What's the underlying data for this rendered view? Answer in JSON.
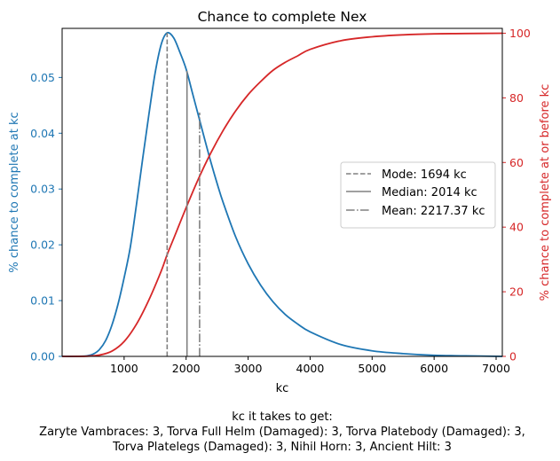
{
  "chart_data": {
    "type": "line",
    "title": "Chance to complete Nex",
    "xlabel": "kc",
    "ylabel_left": "% chance to complete at kc",
    "ylabel_right": "% chance to complete at or before kc",
    "xlim": [
      0,
      7100
    ],
    "ylim_left": [
      0,
      0.0588
    ],
    "ylim_right": [
      0,
      101.5
    ],
    "x_ticks": [
      1000,
      2000,
      3000,
      4000,
      5000,
      6000,
      7000
    ],
    "x_tick_labels": [
      "1000",
      "2000",
      "3000",
      "4000",
      "5000",
      "6000",
      "7000"
    ],
    "y_left_ticks": [
      0,
      0.01,
      0.02,
      0.03,
      0.04,
      0.05
    ],
    "y_left_tick_labels": [
      "0.00",
      "0.01",
      "0.02",
      "0.03",
      "0.04",
      "0.05"
    ],
    "y_right_ticks": [
      0,
      20,
      40,
      60,
      80,
      100
    ],
    "y_right_tick_labels": [
      "0",
      "20",
      "40",
      "60",
      "80",
      "100"
    ],
    "grid": false,
    "legend_position": "center-right",
    "series": [
      {
        "axis": "left",
        "color": "#1f77b4",
        "x": [
          0,
          200,
          400,
          500,
          600,
          700,
          800,
          900,
          1000,
          1100,
          1200,
          1300,
          1400,
          1500,
          1600,
          1694,
          1800,
          1900,
          2000,
          2100,
          2200,
          2300,
          2400,
          2500,
          2600,
          2800,
          3000,
          3200,
          3400,
          3600,
          3800,
          4000,
          4500,
          5000,
          5500,
          6000,
          6500,
          7100
        ],
        "y": [
          0,
          0,
          0.0001,
          0.0004,
          0.0012,
          0.0028,
          0.0055,
          0.0093,
          0.0141,
          0.0196,
          0.0273,
          0.0355,
          0.0434,
          0.0508,
          0.056,
          0.058,
          0.0571,
          0.0545,
          0.0515,
          0.0473,
          0.0431,
          0.0389,
          0.0348,
          0.031,
          0.0275,
          0.0214,
          0.0166,
          0.0128,
          0.0098,
          0.0075,
          0.0058,
          0.0044,
          0.0021,
          0.001,
          0.0005,
          0.0002,
          0.0001,
          0
        ]
      },
      {
        "axis": "right",
        "color": "#d62728",
        "x": [
          0,
          400,
          600,
          800,
          1000,
          1200,
          1400,
          1600,
          1694,
          1800,
          2000,
          2200,
          2400,
          2600,
          2800,
          3000,
          3200,
          3400,
          3600,
          3800,
          4000,
          4500,
          5000,
          5500,
          6000,
          6500,
          7100
        ],
        "y": [
          0,
          0.05,
          0.4,
          1.6,
          4.6,
          10,
          17.5,
          26.5,
          31.5,
          36.5,
          46,
          55,
          63,
          70,
          76,
          81,
          85,
          88.5,
          91,
          93,
          95,
          97.7,
          98.9,
          99.5,
          99.8,
          99.9,
          100
        ]
      }
    ],
    "vlines": [
      {
        "label": "Mode: 1694 kc",
        "x": 1694,
        "style": "dashed",
        "top": 0.058
      },
      {
        "label": "Median: 2014 kc",
        "x": 2014,
        "style": "solid",
        "top": 0.0512
      },
      {
        "label": "Mean: 2217.37 kc",
        "x": 2217.37,
        "style": "dashdot",
        "top": 0.0437
      }
    ],
    "caption": [
      "kc it takes to get:",
      "Zaryte Vambraces: 3,  Torva Full Helm (Damaged): 3,  Torva Platebody (Damaged): 3,",
      "Torva Platelegs (Damaged): 3,  Nihil Horn: 3,  Ancient Hilt: 3"
    ]
  }
}
